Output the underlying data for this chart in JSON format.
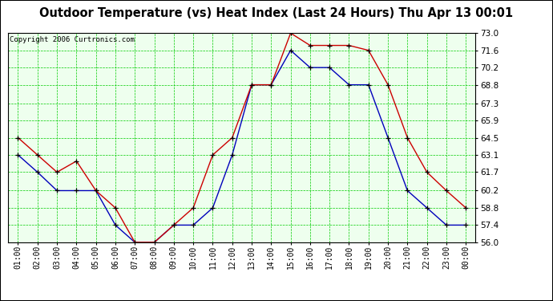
{
  "title": "Outdoor Temperature (vs) Heat Index (Last 24 Hours) Thu Apr 13 00:01",
  "copyright": "Copyright 2006 Curtronics.com",
  "x_labels": [
    "01:00",
    "02:00",
    "03:00",
    "04:00",
    "05:00",
    "06:00",
    "07:00",
    "08:00",
    "09:00",
    "10:00",
    "11:00",
    "12:00",
    "13:00",
    "14:00",
    "15:00",
    "16:00",
    "17:00",
    "18:00",
    "19:00",
    "20:00",
    "21:00",
    "22:00",
    "23:00",
    "00:00"
  ],
  "temp_blue": [
    63.1,
    61.7,
    60.2,
    60.2,
    60.2,
    57.4,
    56.0,
    56.0,
    57.4,
    57.4,
    58.8,
    63.1,
    68.8,
    68.8,
    71.6,
    70.2,
    70.2,
    68.8,
    68.8,
    64.5,
    60.2,
    58.8,
    57.4,
    57.4
  ],
  "heat_red": [
    64.5,
    63.1,
    61.7,
    62.6,
    60.2,
    58.8,
    56.0,
    56.0,
    57.4,
    58.8,
    63.1,
    64.5,
    68.8,
    68.8,
    73.0,
    72.0,
    72.0,
    72.0,
    71.6,
    68.8,
    64.5,
    61.7,
    60.2,
    58.8
  ],
  "ylim": [
    56.0,
    73.0
  ],
  "yticks": [
    56.0,
    57.4,
    58.8,
    60.2,
    61.7,
    63.1,
    64.5,
    65.9,
    67.3,
    68.8,
    70.2,
    71.6,
    73.0
  ],
  "bg_color": "#ffffff",
  "plot_bg": "#eeffee",
  "grid_color": "#00cc00",
  "line_color_blue": "#0000bb",
  "line_color_red": "#cc0000",
  "marker_color": "#111111",
  "title_fontsize": 10.5,
  "copyright_fontsize": 6.5,
  "tick_fontsize": 7.0,
  "ytick_fontsize": 7.5
}
